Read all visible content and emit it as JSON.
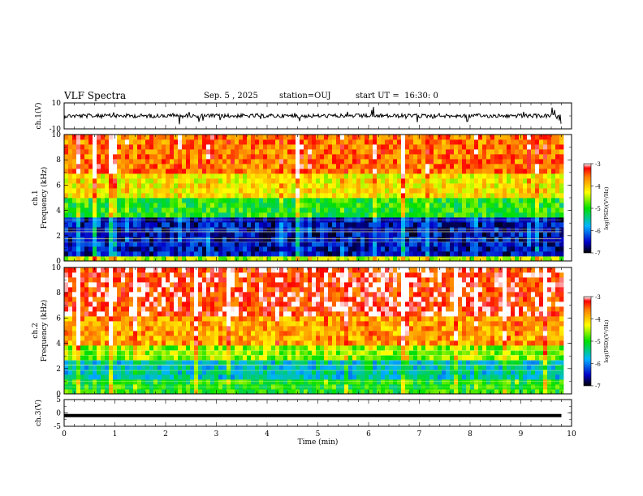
{
  "header": {
    "title": "VLF Spectra",
    "date": "Sep. 5 , 2025",
    "station": "station=OUJ",
    "start_time": "start UT =  16:30: 0"
  },
  "chart_data": [
    {
      "type": "line",
      "panel": "ch1-waveform",
      "ylabel": "ch.1(V)",
      "ylim": [
        -10,
        10
      ],
      "yticks": [
        "10",
        "-10"
      ],
      "baseline": 0
    },
    {
      "type": "heatmap",
      "panel": "ch1-spectrogram",
      "ylabel": "ch.1\nFrequency (kHz)",
      "ylim": [
        0,
        10
      ],
      "yticks": [
        "0",
        "2",
        "4",
        "6",
        "8",
        "10"
      ],
      "colorbar": {
        "label": "log(PSD)(V²/Hz)",
        "range": [
          -7,
          -3
        ],
        "ticks": [
          "-3",
          "-4",
          "-5",
          "-6",
          "-7"
        ]
      },
      "bands_kHz": [
        {
          "from": 0,
          "to": 0.5,
          "level": -4.5
        },
        {
          "from": 0.5,
          "to": 3.5,
          "level": -6.5
        },
        {
          "from": 3.5,
          "to": 5.0,
          "level": -5.0
        },
        {
          "from": 5.0,
          "to": 7.0,
          "level": -4.2
        },
        {
          "from": 7.0,
          "to": 10,
          "level": -3.6
        }
      ]
    },
    {
      "type": "heatmap",
      "panel": "ch2-spectrogram",
      "ylabel": "ch.2\nFrequency (kHz)",
      "ylim": [
        0,
        10
      ],
      "yticks": [
        "0",
        "2",
        "4",
        "6",
        "8",
        "10"
      ],
      "colorbar": {
        "label": "log(PSD)(V²/Hz)",
        "range": [
          -7,
          -3
        ],
        "ticks": [
          "-3",
          "-4",
          "-5",
          "-6",
          "-7"
        ]
      },
      "bands_kHz": [
        {
          "from": 0,
          "to": 1.0,
          "level": -5.0
        },
        {
          "from": 1.0,
          "to": 2.8,
          "level": -5.6
        },
        {
          "from": 2.8,
          "to": 4.0,
          "level": -4.6
        },
        {
          "from": 4.0,
          "to": 6.0,
          "level": -3.8
        },
        {
          "from": 6.0,
          "to": 10,
          "level": -3.3
        }
      ]
    },
    {
      "type": "line",
      "panel": "ch3-waveform",
      "ylabel": "ch.3(V)",
      "ylim": [
        -5,
        5
      ],
      "yticks": [
        "5",
        "0",
        "-5"
      ],
      "baseline": -1,
      "xlabel": "Time (min)",
      "xlim": [
        0,
        10
      ],
      "xticks": [
        "0",
        "1",
        "2",
        "3",
        "4",
        "5",
        "6",
        "7",
        "8",
        "9",
        "10"
      ],
      "data_end_min": 9.8
    }
  ]
}
